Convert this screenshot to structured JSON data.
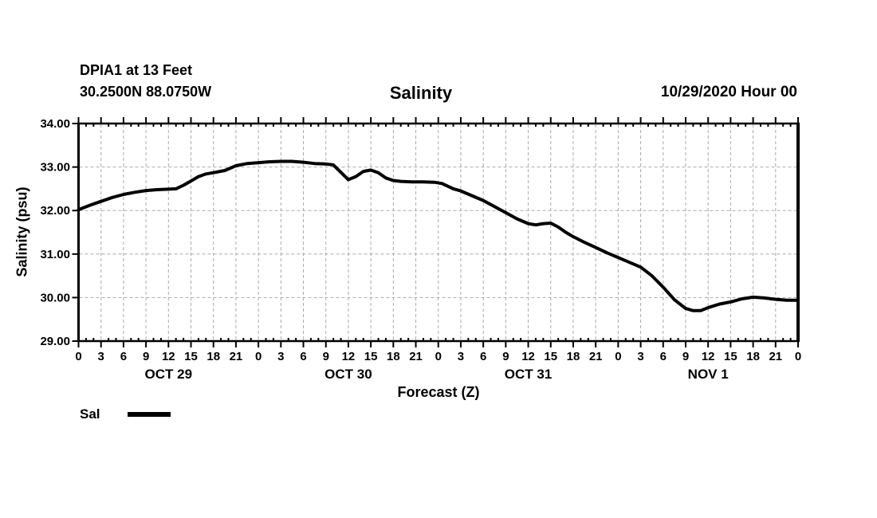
{
  "header": {
    "station_line1": "DPIA1 at 13 Feet",
    "station_line2": "30.2500N 88.0750W",
    "title": "Salinity",
    "run_label": "10/29/2020 Hour 00"
  },
  "chart_data": {
    "type": "line",
    "title": "Salinity",
    "xlabel": "Forecast (Z)",
    "ylabel": "Salinity (psu)",
    "ylim": [
      29,
      34
    ],
    "ytick_values": [
      29,
      30,
      31,
      32,
      33,
      34
    ],
    "ytick_labels": [
      "29.00",
      "30.00",
      "31.00",
      "32.00",
      "33.00",
      "34.00"
    ],
    "x_total_hours": 96,
    "xtick_major_step_hours": 3,
    "xtick_minor_step_hours": 1,
    "xtick_labels": [
      "0",
      "3",
      "6",
      "9",
      "12",
      "15",
      "18",
      "21",
      "0",
      "3",
      "6",
      "9",
      "12",
      "15",
      "18",
      "21",
      "0",
      "3",
      "6",
      "9",
      "12",
      "15",
      "18",
      "21",
      "0",
      "3",
      "6",
      "9",
      "12",
      "15",
      "18",
      "21",
      "0"
    ],
    "day_labels": [
      {
        "text": "OCT 29",
        "hour": 12
      },
      {
        "text": "OCT 30",
        "hour": 36
      },
      {
        "text": "OCT 31",
        "hour": 60
      },
      {
        "text": "NOV 1",
        "hour": 84
      }
    ],
    "legend_label": "Sal",
    "grid": true,
    "legend_position": "bottom-left",
    "colors": {
      "line": "#000000",
      "grid": "#aaaaaa",
      "axis": "#000000",
      "background": "#ffffff"
    },
    "series": [
      {
        "name": "Sal",
        "hours": [
          0,
          1.5,
          3,
          4.5,
          6,
          7.5,
          9,
          10.5,
          12,
          13,
          14,
          15,
          16,
          17,
          18,
          19.5,
          21,
          22.5,
          24,
          25.5,
          27,
          28.5,
          30,
          31.5,
          33,
          34,
          35,
          36,
          37,
          38,
          39,
          40,
          41,
          42,
          43,
          44.5,
          46,
          47.5,
          48.5,
          50,
          51,
          52.5,
          54,
          55.5,
          57,
          58.5,
          60,
          61,
          62,
          63,
          64,
          65,
          66,
          67.5,
          69,
          70.5,
          72,
          73.5,
          75,
          76.5,
          78,
          79.5,
          81,
          82,
          83,
          84,
          85.5,
          87,
          88.5,
          90,
          91.5,
          93,
          94.5,
          96
        ],
        "values": [
          32.02,
          32.12,
          32.21,
          32.3,
          32.37,
          32.42,
          32.46,
          32.48,
          32.49,
          32.5,
          32.58,
          32.68,
          32.78,
          32.84,
          32.87,
          32.92,
          33.03,
          33.08,
          33.1,
          33.12,
          33.13,
          33.13,
          33.11,
          33.08,
          33.07,
          33.05,
          32.88,
          32.71,
          32.78,
          32.9,
          32.93,
          32.87,
          32.75,
          32.69,
          32.67,
          32.66,
          32.66,
          32.65,
          32.62,
          32.5,
          32.45,
          32.34,
          32.23,
          32.09,
          31.95,
          31.81,
          31.7,
          31.67,
          31.7,
          31.71,
          31.62,
          31.5,
          31.4,
          31.27,
          31.15,
          31.03,
          30.92,
          30.81,
          30.7,
          30.5,
          30.24,
          29.95,
          29.75,
          29.7,
          29.7,
          29.77,
          29.85,
          29.9,
          29.97,
          30.01,
          29.99,
          29.96,
          29.94,
          29.94
        ]
      }
    ]
  }
}
